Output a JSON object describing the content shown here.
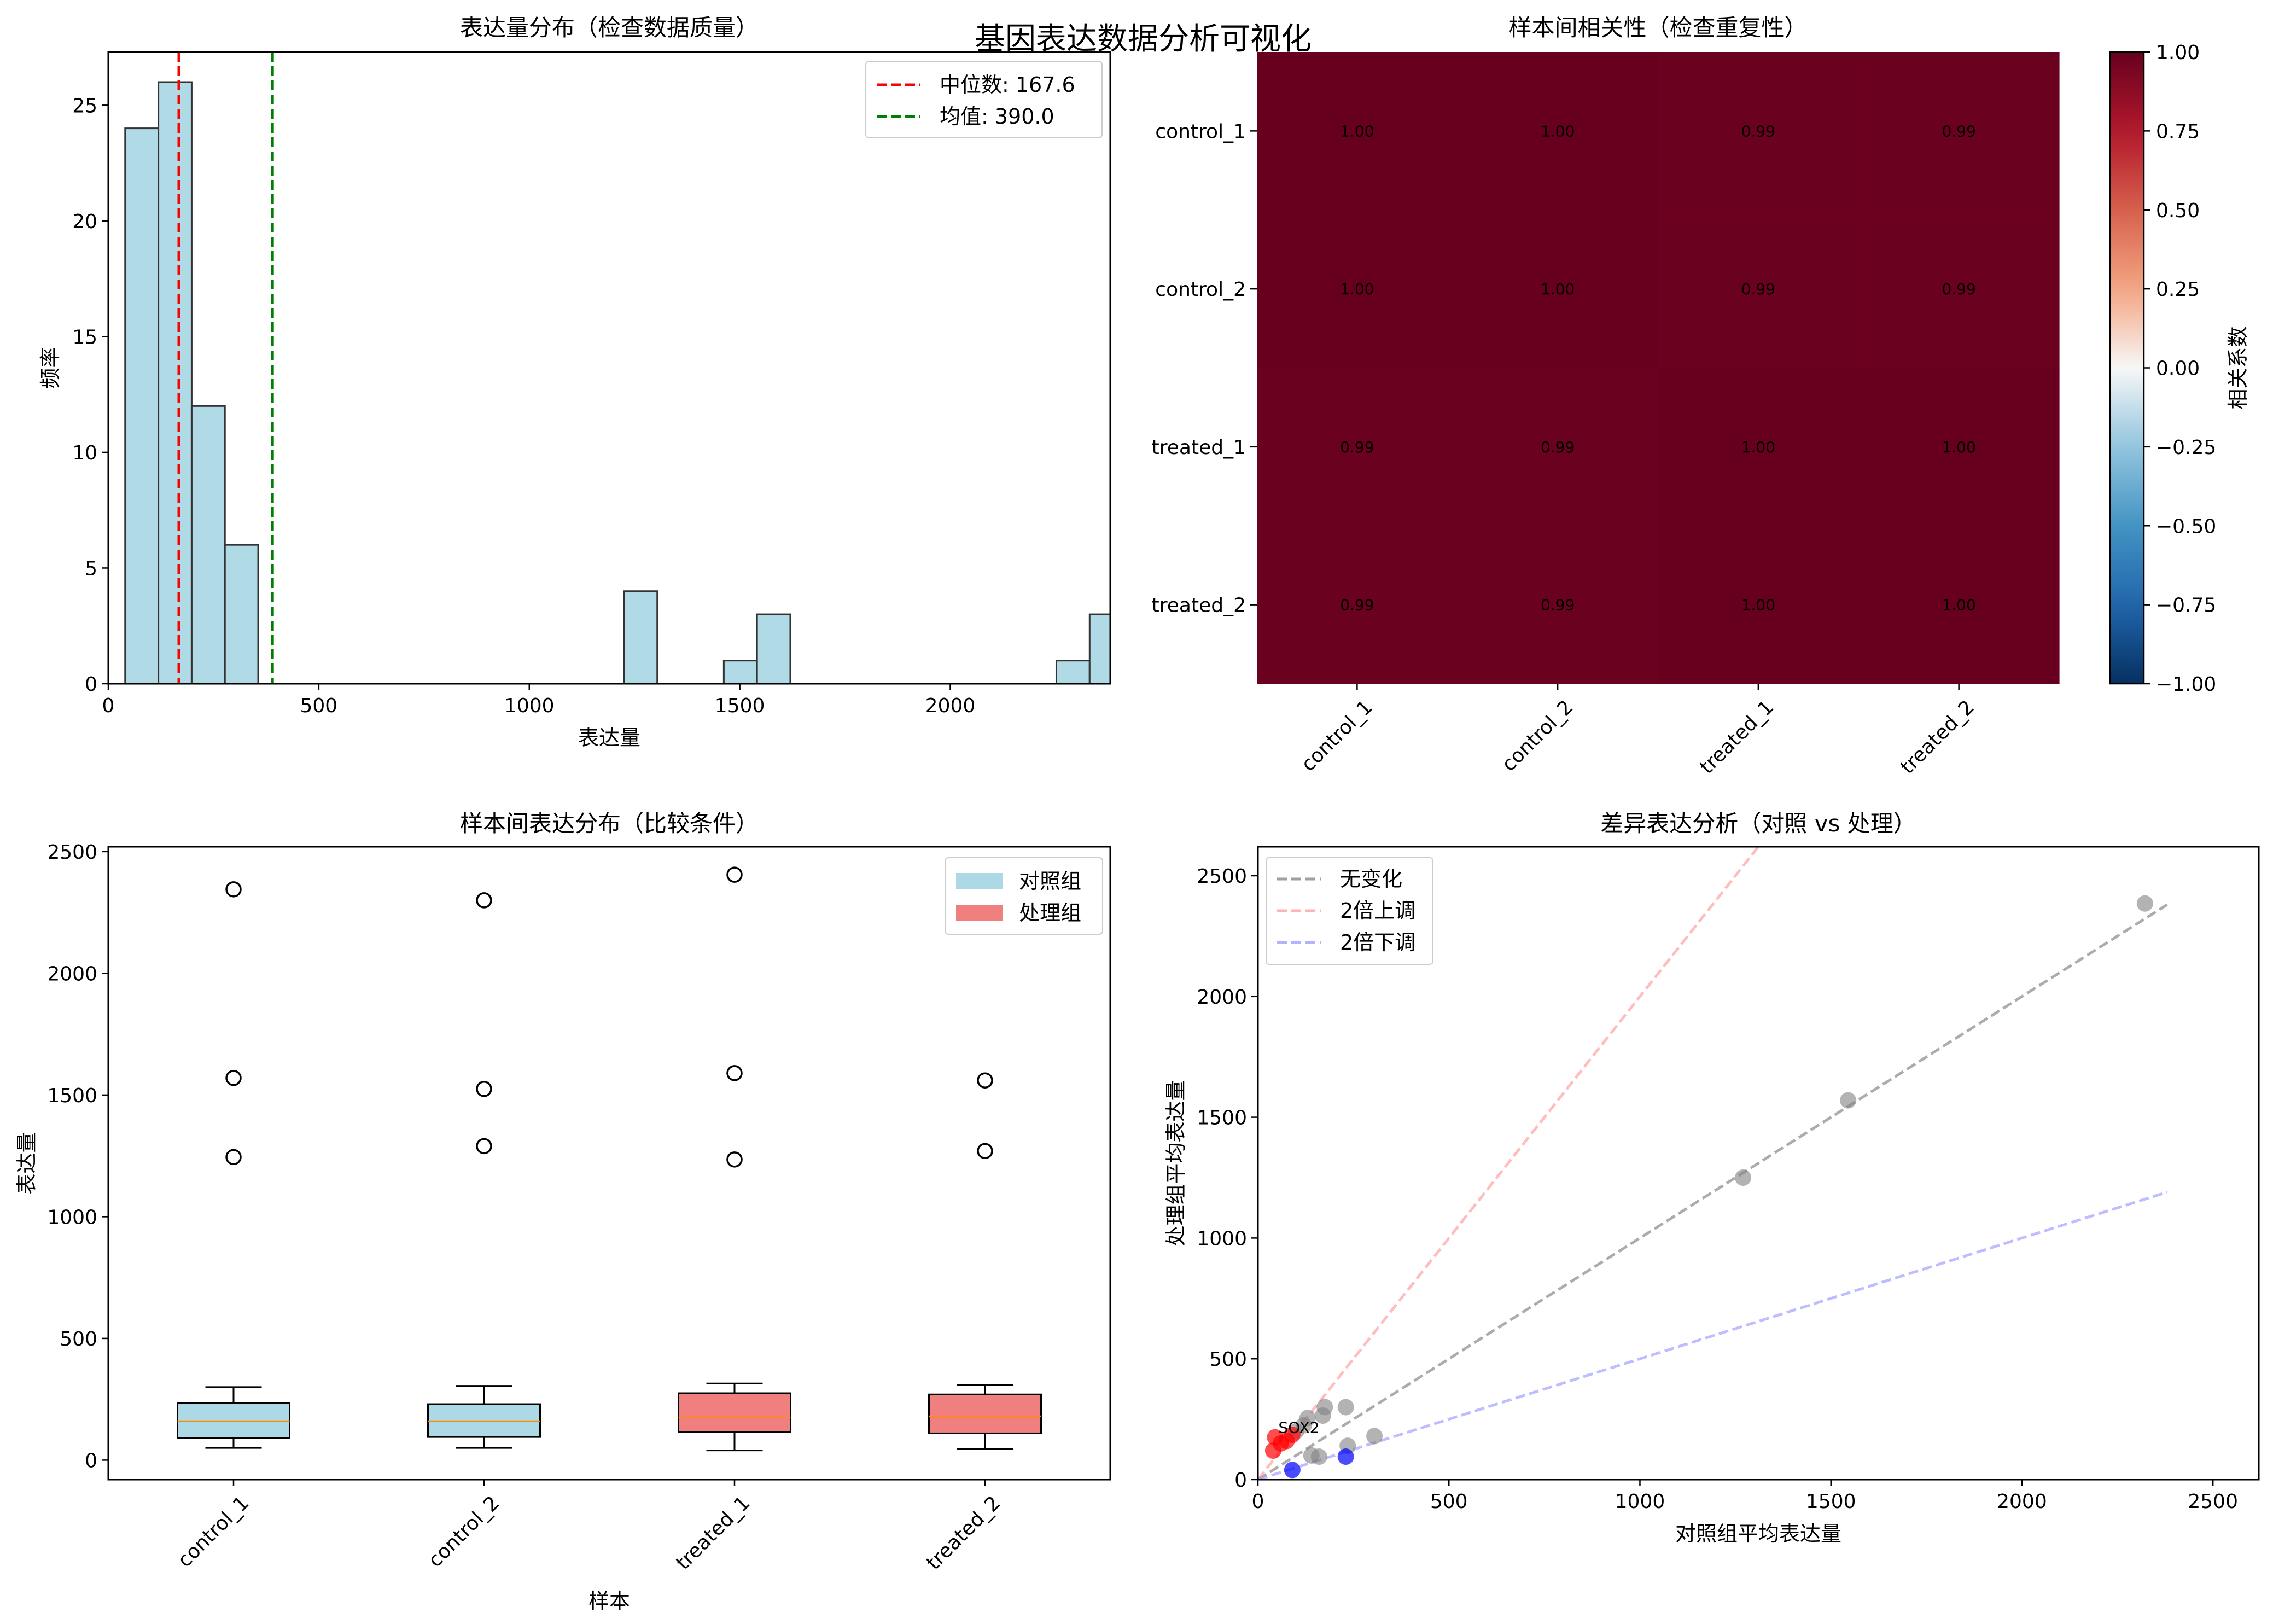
{
  "suptitle": "基因表达数据分析可视化",
  "chart_data": [
    {
      "type": "bar",
      "subtype": "histogram",
      "title": "表达量分布（检查数据质量）",
      "xlabel": "表达量",
      "ylabel": "频率",
      "xlim": [
        0,
        2380
      ],
      "ylim": [
        0,
        27.3
      ],
      "xticks": [
        0,
        500,
        1000,
        1500,
        2000
      ],
      "yticks": [
        0,
        5,
        10,
        15,
        20,
        25
      ],
      "bins": [
        {
          "x0": 40,
          "x1": 119,
          "count": 24
        },
        {
          "x0": 119,
          "x1": 198,
          "count": 26
        },
        {
          "x0": 198,
          "x1": 277,
          "count": 12
        },
        {
          "x0": 277,
          "x1": 356,
          "count": 6
        },
        {
          "x0": 1225,
          "x1": 1304,
          "count": 4
        },
        {
          "x0": 1462,
          "x1": 1541,
          "count": 1
        },
        {
          "x0": 1541,
          "x1": 1620,
          "count": 3
        },
        {
          "x0": 2252,
          "x1": 2331,
          "count": 1
        },
        {
          "x0": 2331,
          "x1": 2410,
          "count": 3
        }
      ],
      "bar_color": "#add8e6",
      "vlines": [
        {
          "name": "中位数: 167.6",
          "x": 167.6,
          "color": "#ff0000"
        },
        {
          "name": "均值: 390.0",
          "x": 390.0,
          "color": "#008000"
        }
      ],
      "legend": "upper-right"
    },
    {
      "type": "heatmap",
      "title": "样本间相关性（检查重复性）",
      "rows": [
        "control_1",
        "control_2",
        "treated_1",
        "treated_2"
      ],
      "cols": [
        "control_1",
        "control_2",
        "treated_1",
        "treated_2"
      ],
      "values": [
        [
          "1.00",
          "1.00",
          "0.99",
          "0.99"
        ],
        [
          "1.00",
          "1.00",
          "0.99",
          "0.99"
        ],
        [
          "0.99",
          "0.99",
          "1.00",
          "1.00"
        ],
        [
          "0.99",
          "0.99",
          "1.00",
          "1.00"
        ]
      ],
      "colormap": "RdBu_r",
      "vmin": -1.0,
      "vmax": 1.0,
      "colorbar_label": "相关系数",
      "colorbar_ticks": [
        "1.00",
        "0.75",
        "0.50",
        "0.25",
        "0.00",
        "−0.25",
        "−0.50",
        "−0.75",
        "−1.00"
      ]
    },
    {
      "type": "boxplot",
      "title": "样本间表达分布（比较条件）",
      "xlabel": "样本",
      "ylabel": "表达量",
      "ylim": [
        -80,
        2520
      ],
      "yticks": [
        0,
        500,
        1000,
        1500,
        2000,
        2500
      ],
      "categories": [
        "control_1",
        "control_2",
        "treated_1",
        "treated_2"
      ],
      "boxes": [
        {
          "whisker_low": 50,
          "q1": 90,
          "median": 160,
          "q3": 235,
          "whisker_high": 300,
          "outliers": [
            2345,
            1570,
            1245
          ],
          "color": "#add8e6"
        },
        {
          "whisker_low": 50,
          "q1": 95,
          "median": 160,
          "q3": 230,
          "whisker_high": 305,
          "outliers": [
            2300,
            1525,
            1290
          ],
          "color": "#add8e6"
        },
        {
          "whisker_low": 40,
          "q1": 115,
          "median": 175,
          "q3": 275,
          "whisker_high": 315,
          "outliers": [
            2405,
            1590,
            1235
          ],
          "color": "#f08080"
        },
        {
          "whisker_low": 45,
          "q1": 110,
          "median": 180,
          "q3": 270,
          "whisker_high": 310,
          "outliers": [
            1560,
            1270
          ],
          "color": "#f08080"
        }
      ],
      "legend_entries": [
        {
          "name": "对照组",
          "color": "#add8e6"
        },
        {
          "name": "处理组",
          "color": "#f08080"
        }
      ],
      "legend": "upper-right"
    },
    {
      "type": "scatter",
      "title": "差异表达分析（对照 vs 处理）",
      "xlabel": "对照组平均表达量",
      "ylabel": "处理组平均表达量",
      "xlim": [
        0,
        2620
      ],
      "ylim": [
        0,
        2620
      ],
      "xticks": [
        0,
        500,
        1000,
        1500,
        2000,
        2500
      ],
      "yticks": [
        0,
        500,
        1000,
        1500,
        2000,
        2500
      ],
      "lines": [
        {
          "name": "无变化",
          "slope": 1,
          "color": "#808080"
        },
        {
          "name": "2倍上调",
          "slope": 2,
          "color": "#ff9999"
        },
        {
          "name": "2倍下调",
          "slope": 0.5,
          "color": "#9999ff"
        }
      ],
      "line_xmax": 2380,
      "points_gray": [
        [
          2322,
          2385
        ],
        [
          1545,
          1570
        ],
        [
          1270,
          1250
        ],
        [
          305,
          180
        ],
        [
          235,
          140
        ],
        [
          230,
          300
        ],
        [
          175,
          300
        ],
        [
          170,
          265
        ],
        [
          160,
          95
        ],
        [
          140,
          100
        ],
        [
          130,
          255
        ],
        [
          120,
          225
        ],
        [
          100,
          200
        ]
      ],
      "points_red": [
        [
          40,
          120
        ],
        [
          45,
          175
        ],
        [
          60,
          150
        ],
        [
          75,
          160
        ],
        [
          90,
          185
        ]
      ],
      "points_blue": [
        [
          90,
          40
        ],
        [
          230,
          95
        ]
      ],
      "annotation": {
        "text": "SOX2",
        "x": 45,
        "y": 175
      },
      "legend": "upper-left"
    }
  ]
}
